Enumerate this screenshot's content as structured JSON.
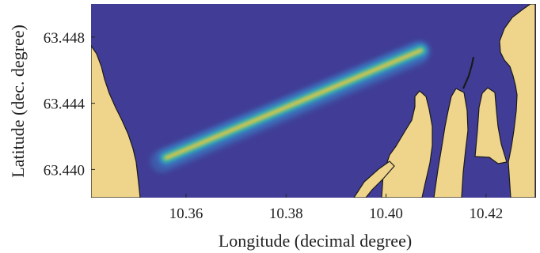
{
  "map": {
    "x_axis": {
      "label": "Longitude (decimal degree)",
      "ticks": [
        10.36,
        10.38,
        10.4,
        10.42
      ],
      "tick_labels": [
        "10.36",
        "10.38",
        "10.40",
        "10.42"
      ],
      "range": [
        10.341,
        10.43
      ]
    },
    "y_axis": {
      "label": "Latitude (dec. degree)",
      "ticks": [
        63.44,
        63.444,
        63.448
      ],
      "tick_labels": [
        "63.440",
        "63.444",
        "63.448"
      ],
      "range": [
        63.4383,
        63.45
      ]
    },
    "colors": {
      "water": "#413d96",
      "land": "#efd48c",
      "coastline": "#1a1a1a",
      "density_low": "#3a8fd0",
      "density_mid": "#2cbcb0",
      "density_high": "#f2c93a"
    },
    "heat_track": {
      "start": [
        10.356,
        63.4407
      ],
      "end": [
        10.407,
        63.4472
      ]
    }
  }
}
